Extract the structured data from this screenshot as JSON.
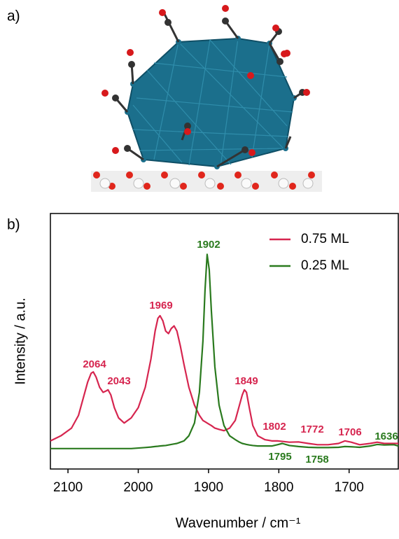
{
  "chart_data": {
    "type": "line",
    "panel_labels": [
      "a)",
      "b)"
    ],
    "xlabel": "Wavenumber / cm⁻¹",
    "ylabel": "Intensity / a.u.",
    "xlim": [
      2125,
      1630
    ],
    "ylim": [
      0,
      1
    ],
    "xticks": [
      2100,
      2000,
      1900,
      1800,
      1700
    ],
    "legend": "upper right",
    "x": [
      2125,
      2110,
      2095,
      2085,
      2078,
      2072,
      2067,
      2064,
      2060,
      2055,
      2050,
      2046,
      2043,
      2039,
      2034,
      2028,
      2020,
      2010,
      2000,
      1990,
      1982,
      1976,
      1972,
      1969,
      1965,
      1961,
      1957,
      1953,
      1949,
      1945,
      1940,
      1935,
      1928,
      1920,
      1913,
      1908,
      1905,
      1902,
      1899,
      1896,
      1891,
      1885,
      1878,
      1870,
      1862,
      1856,
      1852,
      1849,
      1846,
      1842,
      1837,
      1830,
      1820,
      1810,
      1802,
      1795,
      1785,
      1772,
      1758,
      1745,
      1730,
      1715,
      1706,
      1697,
      1685,
      1670,
      1660,
      1650,
      1636,
      1630
    ],
    "series": [
      {
        "name": "0.75 ML",
        "color": "#d6254f",
        "values": [
          0.11,
          0.13,
          0.16,
          0.21,
          0.28,
          0.34,
          0.375,
          0.38,
          0.36,
          0.32,
          0.3,
          0.305,
          0.31,
          0.29,
          0.24,
          0.2,
          0.18,
          0.2,
          0.24,
          0.32,
          0.43,
          0.54,
          0.59,
          0.6,
          0.58,
          0.54,
          0.53,
          0.55,
          0.56,
          0.54,
          0.48,
          0.41,
          0.32,
          0.25,
          0.21,
          0.19,
          0.185,
          0.18,
          0.175,
          0.17,
          0.16,
          0.155,
          0.15,
          0.16,
          0.19,
          0.25,
          0.29,
          0.31,
          0.3,
          0.24,
          0.17,
          0.13,
          0.115,
          0.11,
          0.11,
          0.108,
          0.105,
          0.106,
          0.1,
          0.095,
          0.095,
          0.1,
          0.11,
          0.105,
          0.095,
          0.1,
          0.105,
          0.1,
          0.1,
          0.1
        ]
      },
      {
        "name": "0.25 ML",
        "color": "#2a7a1e",
        "values": [
          0.08,
          0.08,
          0.08,
          0.08,
          0.08,
          0.08,
          0.08,
          0.08,
          0.08,
          0.08,
          0.08,
          0.08,
          0.08,
          0.08,
          0.08,
          0.08,
          0.08,
          0.08,
          0.082,
          0.084,
          0.086,
          0.088,
          0.089,
          0.09,
          0.091,
          0.092,
          0.094,
          0.096,
          0.098,
          0.1,
          0.105,
          0.11,
          0.13,
          0.18,
          0.3,
          0.5,
          0.7,
          0.84,
          0.78,
          0.62,
          0.4,
          0.25,
          0.17,
          0.13,
          0.115,
          0.105,
          0.1,
          0.098,
          0.096,
          0.094,
          0.092,
          0.09,
          0.09,
          0.09,
          0.095,
          0.1,
          0.092,
          0.088,
          0.085,
          0.084,
          0.084,
          0.085,
          0.088,
          0.087,
          0.085,
          0.09,
          0.096,
          0.094,
          0.095,
          0.09
        ]
      }
    ],
    "peak_labels": [
      {
        "x": 2064,
        "series": 0
      },
      {
        "x": 2043,
        "series": 0
      },
      {
        "x": 1969,
        "series": 0
      },
      {
        "x": 1902,
        "series": 1
      },
      {
        "x": 1849,
        "series": 0
      },
      {
        "x": 1802,
        "series": 0
      },
      {
        "x": 1772,
        "series": 0
      },
      {
        "x": 1706,
        "series": 0
      },
      {
        "x": 1636,
        "series": 1
      },
      {
        "x": 1795,
        "series": 1
      },
      {
        "x": 1758,
        "series": 1
      }
    ]
  }
}
